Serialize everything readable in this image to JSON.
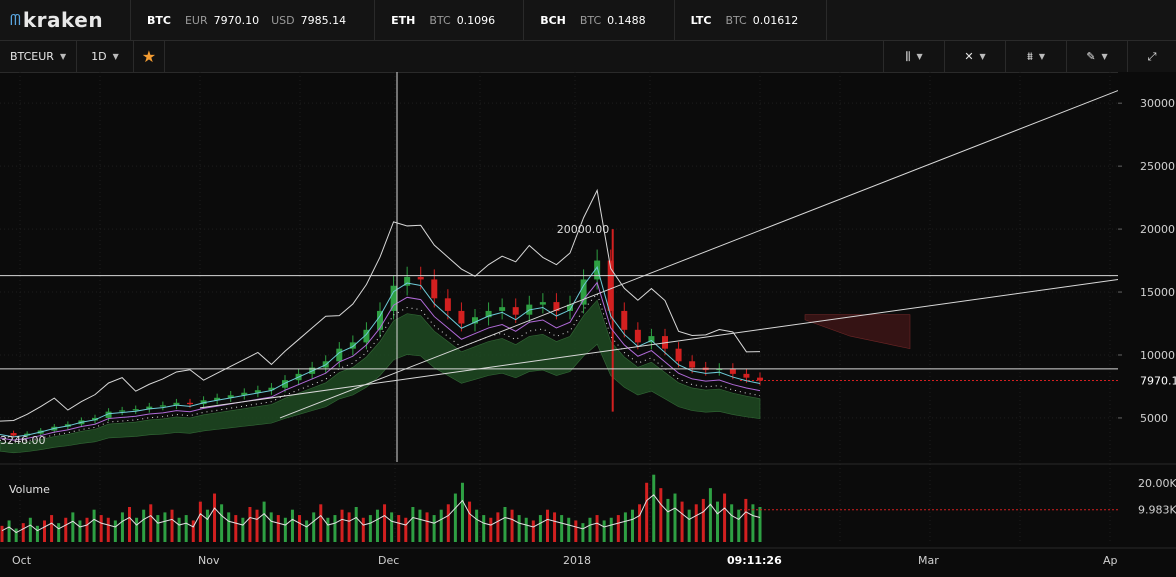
{
  "app": {
    "logo_text": "kraken",
    "logo_icon": "kraken-wave-icon"
  },
  "ticker": [
    {
      "symbol": "BTC",
      "pairs": [
        {
          "cur": "EUR",
          "val": "7970.10"
        },
        {
          "cur": "USD",
          "val": "7985.14"
        }
      ]
    },
    {
      "symbol": "ETH",
      "pairs": [
        {
          "cur": "BTC",
          "val": "0.1096"
        }
      ]
    },
    {
      "symbol": "BCH",
      "pairs": [
        {
          "cur": "BTC",
          "val": "0.1488"
        }
      ]
    },
    {
      "symbol": "LTC",
      "pairs": [
        {
          "cur": "BTC",
          "val": "0.01612"
        }
      ]
    }
  ],
  "toolbar": {
    "pair": "BTCEUR",
    "interval": "1D",
    "favorite_icon": "star-icon",
    "right_icons": [
      "bars-icon",
      "indicators-icon",
      "chart-type-icon",
      "pencil-icon",
      "fullscreen-icon"
    ]
  },
  "colors": {
    "up": "#2ea043",
    "down": "#d32020",
    "line": "#d8d8d8",
    "cloud_green": "#1e4a22",
    "cloud_red": "#3a1416",
    "purple": "#b06ad8",
    "cyan": "#6ecbd8"
  },
  "chart_data": {
    "type": "line",
    "x_ticks": [
      "Oct",
      "Nov",
      "Dec",
      "2018",
      "Mar",
      "Ap"
    ],
    "y_ticks": [
      30000,
      25000,
      20000,
      15000,
      10000,
      5000
    ],
    "y_tick_labels": [
      "30000",
      "25000",
      "20000",
      "15000",
      "10000",
      "5000"
    ],
    "ylim": [
      1500,
      32000
    ],
    "current_price_label": "7970.1",
    "current_price": 7970.1,
    "high_annotation": "20000.00",
    "low_annotation": "3246.00",
    "time_label": "09:11:26",
    "close_series": [
      3800,
      3600,
      3750,
      4000,
      4300,
      4500,
      4800,
      5000,
      5500,
      5600,
      5700,
      5900,
      6000,
      6200,
      6100,
      6400,
      6600,
      6800,
      7000,
      7200,
      7400,
      8000,
      8500,
      9000,
      9500,
      10500,
      11000,
      12000,
      13500,
      15500,
      16200,
      16000,
      14500,
      13500,
      12500,
      13000,
      13500,
      13800,
      13200,
      14000,
      14200,
      13500,
      14000,
      16000,
      17500,
      13500,
      12000,
      11000,
      11500,
      10500,
      9500,
      9000,
      8800,
      8900,
      8500,
      8200,
      7970
    ],
    "volume": {
      "label": "Volume",
      "axis_labels": [
        "20.00K",
        "9.983K"
      ],
      "values": [
        6,
        8,
        5,
        7,
        9,
        6,
        8,
        10,
        7,
        9,
        11,
        8,
        9,
        12,
        10,
        9,
        8,
        11,
        13,
        9,
        12,
        14,
        10,
        11,
        12,
        9,
        10,
        8,
        15,
        12,
        18,
        14,
        11,
        10,
        9,
        13,
        12,
        15,
        11,
        10,
        9,
        12,
        10,
        8,
        11,
        14,
        9,
        10,
        12,
        11,
        13,
        9,
        10,
        12,
        14,
        11,
        10,
        9,
        13,
        12,
        11,
        10,
        12,
        14,
        18,
        22,
        15,
        12,
        10,
        9,
        11,
        13,
        12,
        10,
        9,
        8,
        10,
        12,
        11,
        10,
        9,
        8,
        7,
        9,
        10,
        8,
        9,
        10,
        11,
        12,
        14,
        22,
        25,
        20,
        16,
        18,
        15,
        12,
        14,
        16,
        20,
        15,
        18,
        14,
        12,
        16,
        14,
        13
      ]
    }
  }
}
